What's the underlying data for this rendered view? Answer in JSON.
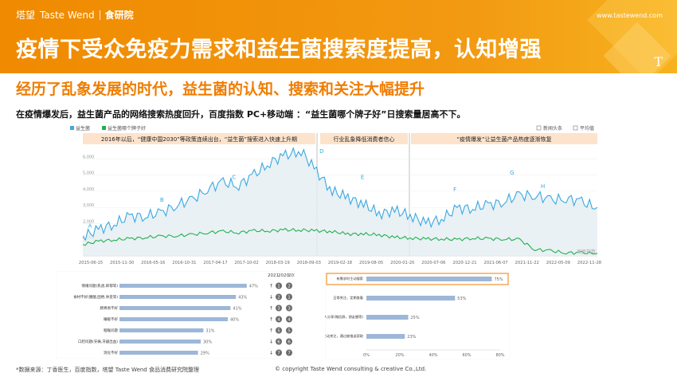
{
  "header": {
    "brand_cn": "塔望",
    "brand_en": "Taste Wend",
    "brand_sub": "食研院",
    "url": "www.tastewend.com",
    "title": "疫情下受众免疫力需求和益生菌搜索度提高，认知增强",
    "t_mark": "T"
  },
  "subtitle": "经历了乱象发展的时代，益生菌的认知、搜索和关注大幅提升",
  "description": "在疫情爆发后，益生菌产品的网络搜索热度回升，百度指数 PC+移动端 ：“益生菌哪个牌子好”日搜索量居高不下。",
  "colors": {
    "orange": "#f08a00",
    "series1": "#3aa8e0",
    "series2": "#22b14c",
    "bar": "#9db7d8",
    "highlight": "#ef7d00"
  },
  "chart_data": [
    {
      "type": "line",
      "legend": [
        "益生菌",
        "益生菌哪个牌子好"
      ],
      "legend_right": [
        "新闻头条",
        "平均值"
      ],
      "watermark": "百度指数",
      "yticks": [
        "6,000",
        "5,000",
        "4,000",
        "3,000",
        "2,000",
        "1,000"
      ],
      "xticks": [
        "2015-06-15",
        "2015-11-30",
        "2016-05-16",
        "2016-10-31",
        "2017-04-17",
        "2017-10-02",
        "2018-03-19",
        "2018-09-03",
        "2019-02-18",
        "2019-08-05",
        "2020-01-20",
        "2020-07-06",
        "2020-12-21",
        "2021-06-07",
        "2021-11-22",
        "2022-05-09",
        "2022-11-28"
      ],
      "ylim": [
        0,
        7000
      ],
      "phases": [
        "2016年以后，“健康中国2030”等政策连续出台，“益生菌”搜索进入快速上升期",
        "行业乱象降低消费者信心",
        "“疫情爆发”让益生菌产品热度逐渐恢复"
      ],
      "annotations": [
        "A",
        "B",
        "C",
        "D",
        "E",
        "F",
        "G",
        "H"
      ],
      "series": [
        {
          "name": "益生菌",
          "values": [
            1200,
            1600,
            2000,
            2400,
            2500,
            2600,
            3200,
            3400,
            4200,
            4500,
            4400,
            5000,
            5800,
            6200,
            6500,
            5200,
            4000,
            3600,
            3200,
            2600,
            2800,
            2500,
            2000,
            2300,
            2900,
            3000,
            3100,
            3400,
            3700,
            3800,
            3400,
            3600,
            3300,
            3000
          ]
        },
        {
          "name": "益生菌哪个牌子好",
          "values": [
            700,
            900,
            1000,
            1050,
            1150,
            1200,
            1250,
            1300,
            1450,
            1500,
            1450,
            1550,
            1550,
            1600,
            1600,
            1550,
            1500,
            1350,
            1350,
            1300,
            1150,
            1100,
            1050,
            1050,
            1000,
            1100,
            1050,
            1050,
            1000,
            400,
            300,
            200,
            180,
            160
          ]
        }
      ]
    },
    {
      "type": "bar",
      "orientation": "horizontal",
      "categories": [
        "情绪问题(焦虑,抑郁等)",
        "食材不好(腰酸,困倦,体变等)",
        "肠胃易不好",
        "睡眠不好",
        "咽喉问题",
        "口腔问题(牙痛,牙龈出血)",
        "消化不好"
      ],
      "values": [
        47,
        43,
        41,
        40,
        31,
        30,
        29
      ],
      "rank_years": [
        "2021",
        "2020",
        "2019"
      ],
      "ranks": [
        [
          "1",
          "2",
          "3"
        ],
        [
          "2",
          "1",
          "2"
        ],
        [
          "3",
          "3",
          "1"
        ],
        [
          "4",
          "4",
          "4"
        ],
        [
          "5",
          "5",
          "6"
        ],
        [
          "6",
          "6",
          "7"
        ],
        [
          "7",
          "7",
          "5"
        ]
      ],
      "trends": [
        "↑",
        "↓",
        "↑",
        "↑",
        "↑",
        "↓",
        "↓"
      ]
    },
    {
      "type": "bar",
      "orientation": "horizontal",
      "categories": [
        "有需求时主动搜索",
        "日常关注，定期查看",
        "通过朋友，家人分享(微信群，朋友圈等)",
        "不主动关注，通过被推送获取"
      ],
      "values": [
        75,
        53,
        25,
        23
      ],
      "xticks": [
        "0%",
        "20%",
        "40%",
        "60%",
        "80%"
      ],
      "xlim": [
        0,
        80
      ]
    }
  ],
  "footer": {
    "source": "*数据来源：丁香医生，百度指数，塔望 Taste Wend 食品消费研究院整理",
    "copyright": "© copyright Taste Wend consulting & creative Co.,Ltd."
  }
}
